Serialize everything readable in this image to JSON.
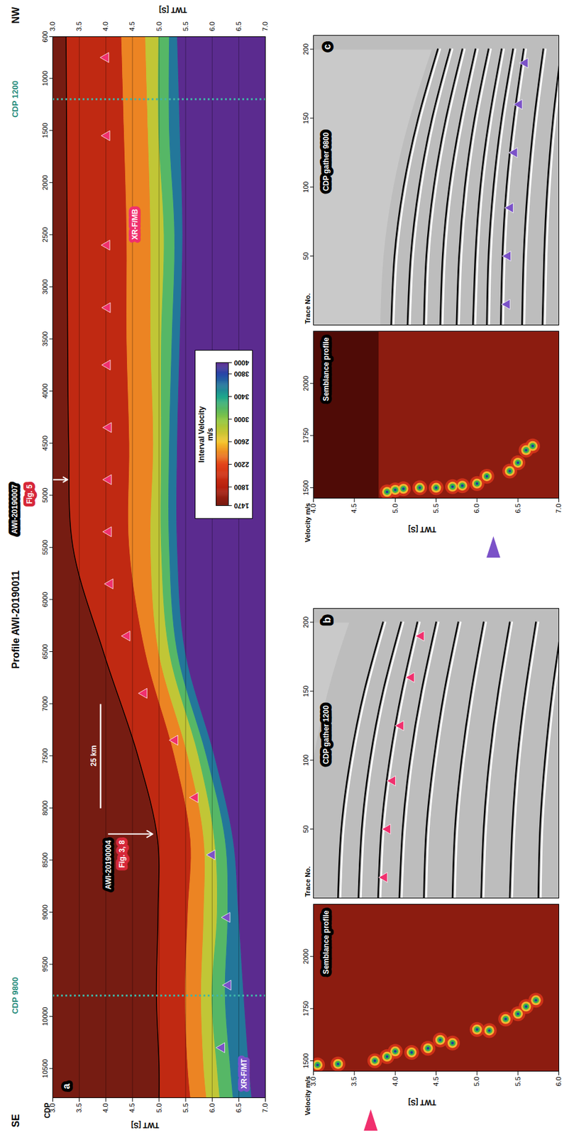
{
  "chart_data": [
    {
      "type": "heatmap",
      "panel": "a",
      "title": "Profile AWI-20190011",
      "left_label": "SE",
      "right_label": "NW",
      "x_label": "CDP",
      "y_label": "TWT [S]",
      "xlim": [
        10780,
        600
      ],
      "xticks": [
        10500,
        10000,
        9500,
        9000,
        8500,
        8000,
        7500,
        7000,
        6500,
        6000,
        5500,
        5000,
        4500,
        4000,
        3500,
        3000,
        2500,
        2000,
        1500,
        1000,
        600
      ],
      "ylim": [
        3.0,
        7.0
      ],
      "yticks": [
        {
          "value": 3,
          "label": "3.0"
        },
        3.5,
        {
          "value": 4,
          "label": "4.0"
        },
        4.5,
        {
          "value": 5,
          "label": "5.0"
        },
        5.5,
        {
          "value": 6,
          "label": "6.0"
        },
        6.5,
        {
          "value": 7,
          "label": "7.0"
        }
      ],
      "grid": true,
      "cdp": [
        600,
        1500,
        2500,
        3500,
        4500,
        5500,
        6500,
        7500,
        8300,
        9000,
        9800,
        10500,
        10780
      ],
      "boundaries": [
        [
          3.25,
          3.26,
          3.27,
          3.28,
          3.3,
          3.38,
          3.95,
          4.6,
          4.97,
          4.98,
          4.95,
          5.0,
          5.0
        ],
        [
          4.3,
          4.35,
          4.4,
          4.4,
          4.45,
          4.45,
          4.75,
          5.3,
          5.6,
          5.55,
          5.5,
          5.55,
          5.6
        ],
        [
          4.75,
          4.8,
          4.85,
          4.85,
          4.9,
          4.85,
          5.0,
          5.55,
          5.85,
          5.85,
          5.8,
          5.85,
          5.9
        ],
        [
          5.0,
          5.0,
          5.1,
          5.05,
          5.05,
          5.05,
          5.2,
          5.75,
          6.05,
          6.1,
          6.0,
          6.1,
          6.15
        ],
        [
          5.2,
          5.2,
          5.3,
          5.25,
          5.2,
          5.2,
          5.35,
          5.9,
          6.25,
          6.3,
          6.25,
          6.35,
          6.4
        ],
        [
          5.35,
          5.4,
          5.45,
          5.4,
          5.35,
          5.35,
          5.5,
          6.05,
          6.4,
          6.5,
          6.6,
          6.7,
          6.75
        ]
      ],
      "velocities": [
        1470,
        1900,
        2400,
        2800,
        3200,
        3600,
        4000
      ],
      "colorbar": {
        "label": "Interval Velocity",
        "unit": "m/s",
        "range": [
          1470,
          4000
        ],
        "ticks": [
          1470,
          1800,
          2200,
          2600,
          3000,
          3400,
          3800,
          4000
        ],
        "colors": [
          "#761c12",
          "#b5200f",
          "#e2431a",
          "#f5c52c",
          "#8cc63f",
          "#1fa78c",
          "#2747a8",
          "#5b2b8f"
        ]
      },
      "series": [
        {
          "name": "XR-F/MB",
          "color": "#f0306e",
          "marker": "triangle",
          "x": [
            800,
            1550,
            2600,
            3200,
            3750,
            4350,
            4850,
            5350,
            5850,
            6350,
            6900,
            7350,
            7900
          ],
          "values": [
            4.0,
            4.02,
            4.02,
            4.03,
            4.03,
            4.05,
            4.05,
            4.05,
            4.08,
            4.4,
            4.72,
            5.3,
            5.68
          ],
          "label_x": 2400,
          "label_y": 4.55
        },
        {
          "name": "XR-F/MT",
          "color": "#7b52c8",
          "marker": "triangle",
          "x": [
            8450,
            9050,
            9700,
            10300
          ],
          "values": [
            6.0,
            6.28,
            6.3,
            6.18
          ],
          "label_x": 10550,
          "label_y": 6.6
        }
      ],
      "reference_lines": [
        {
          "cdp": 1200,
          "label": "CDP 1200",
          "color": "#3fb6a8"
        },
        {
          "cdp": 9800,
          "label": "CDP 9800",
          "color": "#3fb6a8"
        }
      ],
      "crossings": [
        {
          "label": "AWI-20190007",
          "figure": "Fig. 5",
          "cdp": 4850,
          "twt": [
            3.0,
            3.28
          ]
        },
        {
          "label": "AWI-20190004",
          "figure": "Fig. 3, 8",
          "cdp": 8250,
          "twt": [
            4.05,
            4.88
          ]
        }
      ],
      "scale_bar": {
        "label": "25 km",
        "cdp": [
          8000,
          7000
        ],
        "twt": 3.9
      }
    },
    {
      "type": "semblance_gather",
      "panel": "b",
      "semblance": {
        "title": "Semblance profile",
        "x_label": "Velocity m/s",
        "y_label": "TWT [S]",
        "xlim": [
          1450,
          2250
        ],
        "xticks": [
          1500,
          1750,
          2000
        ],
        "ylim": [
          3.0,
          6.0
        ],
        "yticks": [
          {
            "value": 3,
            "label": "3.0"
          },
          3.5,
          {
            "value": 4,
            "label": "4.0"
          },
          4.5,
          {
            "value": 5,
            "label": "5.0"
          },
          5.5,
          {
            "value": 6,
            "label": "6.0"
          }
        ],
        "velocity": [
          1480,
          1485,
          1500,
          1520,
          1545,
          1540,
          1560,
          1600,
          1585,
          1650,
          1645,
          1700,
          1725,
          1760,
          1790
        ],
        "twt": [
          3.05,
          3.3,
          3.75,
          3.9,
          4.0,
          4.2,
          4.4,
          4.55,
          4.7,
          5.0,
          5.15,
          5.35,
          5.5,
          5.6,
          5.72
        ],
        "pick": {
          "twt": 3.7,
          "color": "#f0306e",
          "marker": "triangle"
        }
      },
      "gather": {
        "title": "CDP gather 1200",
        "x_label": "Trace No.",
        "xlim": [
          0,
          210
        ],
        "xticks": [
          50,
          100,
          150,
          200
        ],
        "traces": [
          0,
          50,
          100,
          150,
          200
        ],
        "reflections": [
          [
            3.3,
            3.34,
            3.45,
            3.62,
            3.85
          ],
          [
            3.55,
            3.59,
            3.69,
            3.85,
            4.07
          ],
          [
            3.79,
            3.83,
            3.93,
            4.08,
            4.27
          ],
          [
            4.05,
            4.09,
            4.18,
            4.32,
            4.5
          ],
          [
            4.35,
            4.38,
            4.47,
            4.6,
            4.77
          ],
          [
            4.7,
            4.73,
            4.81,
            4.93,
            5.08
          ],
          [
            5.05,
            5.08,
            5.15,
            5.26,
            5.4
          ],
          [
            5.4,
            5.43,
            5.49,
            5.59,
            5.72
          ],
          [
            5.75,
            5.77,
            5.83,
            5.92,
            6.04
          ]
        ],
        "mute": {
          "traces": [
            100,
            125,
            150,
            175,
            200
          ],
          "twt": [
            3.0,
            3.08,
            3.18,
            3.3,
            3.44
          ]
        },
        "picks": {
          "traces": [
            15,
            50,
            85,
            125,
            160,
            190
          ],
          "twt": [
            3.8,
            3.84,
            3.9,
            4.0,
            4.13,
            4.25
          ],
          "color": "#f0306e",
          "marker": "triangle"
        }
      }
    },
    {
      "type": "semblance_gather",
      "panel": "c",
      "semblance": {
        "title": "Semblance profile",
        "x_label": "Velocity m/s",
        "y_label": "TWT [S]",
        "xlim": [
          1450,
          2250
        ],
        "xticks": [
          1500,
          1750,
          2000
        ],
        "ylim": [
          4.0,
          7.0
        ],
        "yticks": [
          {
            "value": 4,
            "label": "4.0"
          },
          4.5,
          {
            "value": 5,
            "label": "5.0"
          },
          5.5,
          {
            "value": 6,
            "label": "6.0"
          },
          6.5,
          {
            "value": 7,
            "label": "7.0"
          }
        ],
        "mute_twt": 4.8,
        "velocity": [
          1480,
          1490,
          1495,
          1500,
          1500,
          1505,
          1510,
          1520,
          1555,
          1580,
          1620,
          1680,
          1700
        ],
        "twt": [
          4.9,
          5.0,
          5.1,
          5.3,
          5.5,
          5.7,
          5.82,
          6.0,
          6.12,
          6.4,
          6.5,
          6.6,
          6.68
        ],
        "pick": {
          "twt": 6.2,
          "color": "#7b52c8",
          "marker": "triangle"
        }
      },
      "gather": {
        "title": "CDP gather 9800",
        "x_label": "Trace No.",
        "xlim": [
          0,
          210
        ],
        "xticks": [
          50,
          100,
          150,
          200
        ],
        "traces": [
          0,
          50,
          100,
          150,
          200
        ],
        "reflections": [
          [
            4.95,
            4.99,
            5.1,
            5.28,
            5.52
          ],
          [
            5.15,
            5.19,
            5.29,
            5.45,
            5.67
          ],
          [
            5.35,
            5.38,
            5.47,
            5.62,
            5.82
          ],
          [
            5.55,
            5.58,
            5.66,
            5.8,
            5.98
          ],
          [
            5.75,
            5.78,
            5.85,
            5.97,
            6.14
          ],
          [
            5.95,
            5.98,
            6.04,
            6.15,
            6.3
          ],
          [
            6.12,
            6.14,
            6.2,
            6.3,
            6.44
          ],
          [
            6.29,
            6.31,
            6.36,
            6.45,
            6.57
          ],
          [
            6.55,
            6.57,
            6.62,
            6.7,
            6.81
          ],
          [
            6.8,
            6.82,
            6.86,
            6.93,
            7.03
          ]
        ],
        "mute": {
          "traces": [
            0,
            50,
            100,
            150,
            200
          ],
          "twt": [
            4.82,
            4.86,
            4.98,
            5.18,
            5.45
          ]
        },
        "picks": {
          "traces": [
            15,
            50,
            85,
            125,
            160,
            190
          ],
          "twt": [
            6.3,
            6.31,
            6.34,
            6.39,
            6.45,
            6.52
          ],
          "color": "#7b52c8",
          "marker": "triangle"
        }
      }
    }
  ]
}
